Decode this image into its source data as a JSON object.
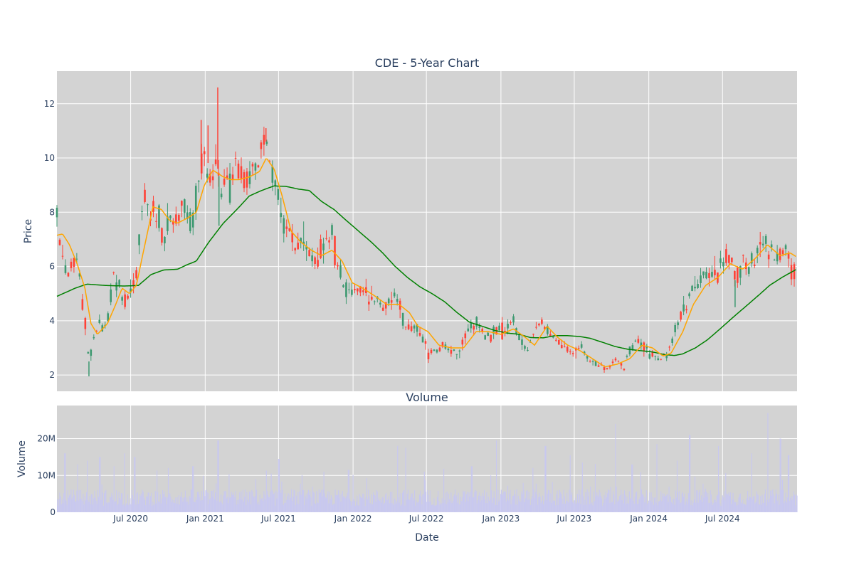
{
  "chart_data": [
    {
      "type": "candlestick",
      "title": "CDE - 5-Year Chart",
      "ylabel": "Price",
      "ylim": [
        1.4,
        13.2
      ],
      "y_ticks": [
        2,
        4,
        6,
        8,
        10,
        12
      ],
      "xlim": [
        "2020-01-01",
        "2025-01-01"
      ],
      "grid": true,
      "legend": "none",
      "colors": {
        "up": "#3d9970",
        "down": "#ff4136",
        "ma_short": "#ffa500",
        "ma_long": "#008000",
        "plot_bg": "#d3d3d3"
      },
      "close_anchors": [
        [
          "2020-01-01",
          7.9
        ],
        [
          "2020-01-10",
          6.6
        ],
        [
          "2020-01-20",
          6.0
        ],
        [
          "2020-02-01",
          5.9
        ],
        [
          "2020-02-15",
          6.2
        ],
        [
          "2020-02-28",
          5.6
        ],
        [
          "2020-03-07",
          4.4
        ],
        [
          "2020-03-14",
          3.6
        ],
        [
          "2020-03-20",
          2.5
        ],
        [
          "2020-03-28",
          3.1
        ],
        [
          "2020-04-10",
          3.9
        ],
        [
          "2020-04-24",
          3.7
        ],
        [
          "2020-05-05",
          4.2
        ],
        [
          "2020-05-20",
          5.5
        ],
        [
          "2020-06-01",
          5.4
        ],
        [
          "2020-06-15",
          4.8
        ],
        [
          "2020-07-01",
          5.2
        ],
        [
          "2020-07-15",
          5.7
        ],
        [
          "2020-07-25",
          7.5
        ],
        [
          "2020-08-05",
          8.4
        ],
        [
          "2020-08-20",
          8.0
        ],
        [
          "2020-09-05",
          7.8
        ],
        [
          "2020-09-20",
          7.0
        ],
        [
          "2020-10-10",
          7.9
        ],
        [
          "2020-10-25",
          7.5
        ],
        [
          "2020-11-10",
          8.3
        ],
        [
          "2020-11-25",
          7.5
        ],
        [
          "2020-12-10",
          8.4
        ],
        [
          "2020-12-22",
          9.7
        ],
        [
          "2021-01-05",
          10.0
        ],
        [
          "2021-01-18",
          9.2
        ],
        [
          "2021-02-01",
          9.6
        ],
        [
          "2021-02-10",
          8.8
        ],
        [
          "2021-02-25",
          9.3
        ],
        [
          "2021-03-08",
          8.9
        ],
        [
          "2021-03-20",
          9.7
        ],
        [
          "2021-04-05",
          9.5
        ],
        [
          "2021-04-20",
          9.1
        ],
        [
          "2021-05-05",
          9.9
        ],
        [
          "2021-05-20",
          10.2
        ],
        [
          "2021-05-31",
          10.6
        ],
        [
          "2021-06-10",
          9.9
        ],
        [
          "2021-06-20",
          9.1
        ],
        [
          "2021-07-01",
          8.7
        ],
        [
          "2021-07-15",
          7.6
        ],
        [
          "2021-07-28",
          7.3
        ],
        [
          "2021-08-10",
          6.7
        ],
        [
          "2021-08-25",
          7.0
        ],
        [
          "2021-09-08",
          6.6
        ],
        [
          "2021-09-22",
          6.3
        ],
        [
          "2021-10-08",
          6.5
        ],
        [
          "2021-10-22",
          6.8
        ],
        [
          "2021-11-08",
          7.1
        ],
        [
          "2021-11-20",
          6.3
        ],
        [
          "2021-12-01",
          5.6
        ],
        [
          "2021-12-15",
          5.2
        ],
        [
          "2022-01-01",
          5.1
        ],
        [
          "2022-01-15",
          5.3
        ],
        [
          "2022-02-01",
          4.9
        ],
        [
          "2022-02-15",
          4.6
        ],
        [
          "2022-03-01",
          4.8
        ],
        [
          "2022-03-15",
          4.5
        ],
        [
          "2022-04-01",
          4.7
        ],
        [
          "2022-04-15",
          5.2
        ],
        [
          "2022-05-01",
          4.4
        ],
        [
          "2022-05-15",
          3.7
        ],
        [
          "2022-06-01",
          3.8
        ],
        [
          "2022-06-15",
          3.5
        ],
        [
          "2022-07-01",
          3.0
        ],
        [
          "2022-07-15",
          2.8
        ],
        [
          "2022-08-01",
          3.0
        ],
        [
          "2022-08-15",
          3.1
        ],
        [
          "2022-09-01",
          2.9
        ],
        [
          "2022-09-15",
          2.8
        ],
        [
          "2022-10-01",
          3.2
        ],
        [
          "2022-10-15",
          3.7
        ],
        [
          "2022-11-01",
          3.9
        ],
        [
          "2022-11-15",
          3.6
        ],
        [
          "2022-12-01",
          3.4
        ],
        [
          "2022-12-15",
          3.5
        ],
        [
          "2023-01-01",
          3.6
        ],
        [
          "2023-01-15",
          3.8
        ],
        [
          "2023-02-01",
          3.9
        ],
        [
          "2023-02-15",
          3.3
        ],
        [
          "2023-03-01",
          3.0
        ],
        [
          "2023-03-15",
          3.1
        ],
        [
          "2023-04-01",
          3.8
        ],
        [
          "2023-04-15",
          3.9
        ],
        [
          "2023-05-01",
          3.6
        ],
        [
          "2023-05-15",
          3.3
        ],
        [
          "2023-06-01",
          3.1
        ],
        [
          "2023-06-15",
          2.9
        ],
        [
          "2023-07-01",
          2.8
        ],
        [
          "2023-07-15",
          3.1
        ],
        [
          "2023-08-01",
          2.7
        ],
        [
          "2023-08-15",
          2.4
        ],
        [
          "2023-09-01",
          2.3
        ],
        [
          "2023-09-15",
          2.2
        ],
        [
          "2023-10-01",
          2.4
        ],
        [
          "2023-10-15",
          2.5
        ],
        [
          "2023-11-01",
          2.3
        ],
        [
          "2023-11-15",
          2.9
        ],
        [
          "2023-12-01",
          3.3
        ],
        [
          "2023-12-15",
          3.1
        ],
        [
          "2024-01-01",
          2.9
        ],
        [
          "2024-01-15",
          2.7
        ],
        [
          "2024-02-01",
          2.6
        ],
        [
          "2024-02-15",
          2.7
        ],
        [
          "2024-03-01",
          3.3
        ],
        [
          "2024-03-20",
          4.2
        ],
        [
          "2024-04-05",
          4.9
        ],
        [
          "2024-04-20",
          5.1
        ],
        [
          "2024-05-05",
          5.5
        ],
        [
          "2024-05-20",
          5.8
        ],
        [
          "2024-06-05",
          5.6
        ],
        [
          "2024-06-20",
          5.7
        ],
        [
          "2024-07-05",
          6.2
        ],
        [
          "2024-07-20",
          6.5
        ],
        [
          "2024-08-01",
          5.5
        ],
        [
          "2024-08-15",
          6.1
        ],
        [
          "2024-09-01",
          6.2
        ],
        [
          "2024-09-15",
          5.9
        ],
        [
          "2024-10-01",
          7.1
        ],
        [
          "2024-10-15",
          6.8
        ],
        [
          "2024-11-01",
          6.7
        ],
        [
          "2024-11-15",
          6.3
        ],
        [
          "2024-12-01",
          6.5
        ],
        [
          "2024-12-10",
          6.6
        ],
        [
          "2024-12-20",
          5.9
        ],
        [
          "2024-12-31",
          5.8
        ]
      ],
      "ma_short": [
        [
          "2020-01-01",
          7.15
        ],
        [
          "2020-01-15",
          7.2
        ],
        [
          "2020-02-01",
          6.8
        ],
        [
          "2020-02-20",
          6.1
        ],
        [
          "2020-03-10",
          5.2
        ],
        [
          "2020-03-25",
          3.9
        ],
        [
          "2020-04-10",
          3.5
        ],
        [
          "2020-05-05",
          3.9
        ],
        [
          "2020-05-25",
          4.6
        ],
        [
          "2020-06-10",
          5.2
        ],
        [
          "2020-06-28",
          5.0
        ],
        [
          "2020-07-15",
          5.3
        ],
        [
          "2020-08-05",
          6.8
        ],
        [
          "2020-08-25",
          8.2
        ],
        [
          "2020-09-15",
          8.1
        ],
        [
          "2020-10-05",
          7.7
        ],
        [
          "2020-10-25",
          7.6
        ],
        [
          "2020-11-20",
          7.8
        ],
        [
          "2020-12-10",
          8.0
        ],
        [
          "2020-12-30",
          9.0
        ],
        [
          "2021-01-20",
          9.55
        ],
        [
          "2021-02-15",
          9.3
        ],
        [
          "2021-03-05",
          9.2
        ],
        [
          "2021-03-25",
          9.2
        ],
        [
          "2021-04-20",
          9.3
        ],
        [
          "2021-05-15",
          9.5
        ],
        [
          "2021-06-01",
          10.0
        ],
        [
          "2021-06-20",
          9.6
        ],
        [
          "2021-07-10",
          8.6
        ],
        [
          "2021-08-01",
          7.3
        ],
        [
          "2021-08-25",
          6.9
        ],
        [
          "2021-09-20",
          6.6
        ],
        [
          "2021-10-15",
          6.4
        ],
        [
          "2021-11-10",
          6.6
        ],
        [
          "2021-12-05",
          6.2
        ],
        [
          "2021-12-30",
          5.4
        ],
        [
          "2022-01-25",
          5.2
        ],
        [
          "2022-02-25",
          4.9
        ],
        [
          "2022-03-25",
          4.6
        ],
        [
          "2022-04-25",
          4.6
        ],
        [
          "2022-05-20",
          4.3
        ],
        [
          "2022-06-10",
          3.8
        ],
        [
          "2022-07-05",
          3.6
        ],
        [
          "2022-08-01",
          3.1
        ],
        [
          "2022-09-01",
          3.0
        ],
        [
          "2022-10-01",
          3.0
        ],
        [
          "2022-11-01",
          3.6
        ],
        [
          "2022-12-01",
          3.6
        ],
        [
          "2023-01-01",
          3.5
        ],
        [
          "2023-02-01",
          3.7
        ],
        [
          "2023-03-01",
          3.4
        ],
        [
          "2023-03-25",
          3.1
        ],
        [
          "2023-04-25",
          3.8
        ],
        [
          "2023-05-20",
          3.4
        ],
        [
          "2023-06-15",
          3.1
        ],
        [
          "2023-07-15",
          2.9
        ],
        [
          "2023-08-15",
          2.6
        ],
        [
          "2023-09-15",
          2.3
        ],
        [
          "2023-10-15",
          2.4
        ],
        [
          "2023-11-15",
          2.6
        ],
        [
          "2023-12-15",
          3.1
        ],
        [
          "2024-01-10",
          3.0
        ],
        [
          "2024-02-05",
          2.7
        ],
        [
          "2024-02-25",
          2.8
        ],
        [
          "2024-03-25",
          3.6
        ],
        [
          "2024-04-20",
          4.6
        ],
        [
          "2024-05-20",
          5.3
        ],
        [
          "2024-06-20",
          5.6
        ],
        [
          "2024-07-20",
          6.1
        ],
        [
          "2024-08-20",
          5.9
        ],
        [
          "2024-09-20",
          6.3
        ],
        [
          "2024-10-20",
          6.8
        ],
        [
          "2024-11-20",
          6.4
        ],
        [
          "2024-12-15",
          6.5
        ],
        [
          "2024-12-31",
          6.35
        ]
      ],
      "ma_long": [
        [
          "2020-01-01",
          4.9
        ],
        [
          "2020-02-15",
          5.2
        ],
        [
          "2020-03-15",
          5.35
        ],
        [
          "2020-05-01",
          5.3
        ],
        [
          "2020-06-15",
          5.28
        ],
        [
          "2020-07-20",
          5.3
        ],
        [
          "2020-08-20",
          5.7
        ],
        [
          "2020-09-20",
          5.87
        ],
        [
          "2020-10-25",
          5.9
        ],
        [
          "2020-11-15",
          6.05
        ],
        [
          "2020-12-10",
          6.2
        ],
        [
          "2021-01-10",
          6.9
        ],
        [
          "2021-02-15",
          7.6
        ],
        [
          "2021-03-20",
          8.1
        ],
        [
          "2021-04-20",
          8.6
        ],
        [
          "2021-05-20",
          8.8
        ],
        [
          "2021-06-20",
          8.97
        ],
        [
          "2021-07-20",
          8.95
        ],
        [
          "2021-08-20",
          8.85
        ],
        [
          "2021-09-15",
          8.8
        ],
        [
          "2021-10-15",
          8.4
        ],
        [
          "2021-11-15",
          8.1
        ],
        [
          "2021-12-15",
          7.7
        ],
        [
          "2022-01-15",
          7.3
        ],
        [
          "2022-02-15",
          6.9
        ],
        [
          "2022-03-15",
          6.5
        ],
        [
          "2022-04-15",
          6.0
        ],
        [
          "2022-05-15",
          5.6
        ],
        [
          "2022-06-15",
          5.25
        ],
        [
          "2022-07-15",
          5.0
        ],
        [
          "2022-08-15",
          4.7
        ],
        [
          "2022-09-15",
          4.3
        ],
        [
          "2022-10-15",
          3.95
        ],
        [
          "2022-11-15",
          3.8
        ],
        [
          "2022-12-15",
          3.65
        ],
        [
          "2023-01-15",
          3.55
        ],
        [
          "2023-02-15",
          3.5
        ],
        [
          "2023-03-15",
          3.38
        ],
        [
          "2023-04-15",
          3.37
        ],
        [
          "2023-05-15",
          3.45
        ],
        [
          "2023-06-15",
          3.45
        ],
        [
          "2023-07-15",
          3.42
        ],
        [
          "2023-08-10",
          3.35
        ],
        [
          "2023-09-10",
          3.2
        ],
        [
          "2023-10-10",
          3.05
        ],
        [
          "2023-11-10",
          2.95
        ],
        [
          "2023-12-10",
          2.9
        ],
        [
          "2024-01-10",
          2.85
        ],
        [
          "2024-02-10",
          2.75
        ],
        [
          "2024-03-05",
          2.72
        ],
        [
          "2024-03-25",
          2.78
        ],
        [
          "2024-04-25",
          3.0
        ],
        [
          "2024-05-25",
          3.3
        ],
        [
          "2024-06-25",
          3.7
        ],
        [
          "2024-07-25",
          4.1
        ],
        [
          "2024-08-25",
          4.5
        ],
        [
          "2024-09-25",
          4.9
        ],
        [
          "2024-10-25",
          5.3
        ],
        [
          "2024-11-25",
          5.6
        ],
        [
          "2024-12-31",
          5.9
        ]
      ],
      "spikes": [
        [
          "2020-12-22",
          11.4
        ],
        [
          "2021-02-01",
          12.6
        ],
        [
          "2021-01-08",
          11.2
        ],
        [
          "2021-05-31",
          11.1
        ],
        [
          "2021-02-04",
          7.5
        ],
        [
          "2024-08-01",
          4.5
        ],
        [
          "2020-03-20",
          1.95
        ]
      ]
    },
    {
      "type": "bar",
      "title": "Volume",
      "xlabel": "Date",
      "ylabel": "Volume",
      "ylim": [
        0,
        29000000
      ],
      "y_ticks": [
        0,
        10000000,
        20000000
      ],
      "y_tick_labels": [
        "0",
        "10M",
        "20M"
      ],
      "x_ticks": [
        "2020-07-01",
        "2021-01-01",
        "2021-07-01",
        "2022-01-01",
        "2022-07-01",
        "2023-01-01",
        "2023-07-01",
        "2024-01-01",
        "2024-07-01"
      ],
      "x_tick_labels": [
        "Jul 2020",
        "Jan 2021",
        "Jul 2021",
        "Jan 2022",
        "Jul 2022",
        "Jan 2023",
        "Jul 2023",
        "Jan 2024",
        "Jul 2024"
      ],
      "color": "#c8c8f0",
      "base_level": 5000000,
      "peaks": [
        [
          "2020-01-20",
          16000000
        ],
        [
          "2020-02-20",
          13000000
        ],
        [
          "2020-03-15",
          14000000
        ],
        [
          "2020-04-15",
          15000000
        ],
        [
          "2020-05-20",
          12500000
        ],
        [
          "2020-06-15",
          16000000
        ],
        [
          "2020-07-10",
          15000000
        ],
        [
          "2020-10-01",
          12000000
        ],
        [
          "2020-12-01",
          12500000
        ],
        [
          "2021-02-01",
          19500000
        ],
        [
          "2021-05-05",
          9000000
        ],
        [
          "2021-07-01",
          14500000
        ],
        [
          "2021-10-20",
          11000000
        ],
        [
          "2021-12-20",
          11500000
        ],
        [
          "2022-04-20",
          18000000
        ],
        [
          "2022-05-10",
          17500000
        ],
        [
          "2022-06-25",
          11000000
        ],
        [
          "2022-10-20",
          12500000
        ],
        [
          "2022-12-20",
          19500000
        ],
        [
          "2023-03-20",
          12000000
        ],
        [
          "2023-04-20",
          18000000
        ],
        [
          "2023-06-20",
          15500000
        ],
        [
          "2023-07-20",
          13500000
        ],
        [
          "2023-10-10",
          24000000
        ],
        [
          "2023-11-20",
          13000000
        ],
        [
          "2024-01-20",
          18500000
        ],
        [
          "2024-03-10",
          14000000
        ],
        [
          "2024-04-10",
          21000000
        ],
        [
          "2024-06-20",
          18000000
        ],
        [
          "2024-09-10",
          16000000
        ],
        [
          "2024-10-20",
          27000000
        ],
        [
          "2024-11-20",
          20000000
        ],
        [
          "2024-12-10",
          15500000
        ]
      ]
    }
  ]
}
